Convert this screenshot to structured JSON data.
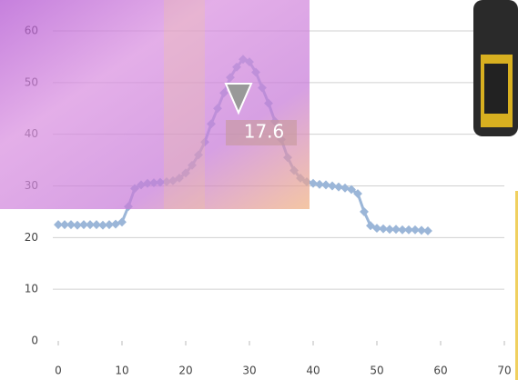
{
  "chart_data": {
    "type": "line",
    "annotation": "17.6",
    "xlim": [
      0,
      70
    ],
    "xticks": [
      0,
      10,
      20,
      30,
      40,
      50,
      60,
      70
    ],
    "ylim": [
      0,
      60
    ],
    "yticks": [
      0,
      10,
      20,
      30,
      40,
      50,
      60
    ],
    "grid": true,
    "series": [
      {
        "color": "#9bb6d8",
        "x": [
          0,
          1,
          2,
          3,
          4,
          5,
          6,
          7,
          8,
          9,
          10,
          11,
          12,
          13,
          14,
          15,
          16,
          17,
          18,
          19,
          20,
          21,
          22,
          23,
          24,
          25,
          26,
          27,
          28,
          29,
          30,
          31,
          32,
          33,
          34,
          35,
          36,
          37,
          38,
          39,
          40,
          41,
          42,
          43,
          44,
          45,
          46,
          47,
          48,
          49,
          50,
          51,
          52,
          53,
          54,
          55,
          56,
          57,
          58
        ],
        "values": [
          22.5,
          22.5,
          22.5,
          22.4,
          22.5,
          22.5,
          22.5,
          22.4,
          22.5,
          22.6,
          23,
          26,
          29.5,
          30.2,
          30.5,
          30.6,
          30.7,
          30.8,
          31,
          31.5,
          32.5,
          34,
          36,
          38.5,
          42,
          45,
          48,
          51,
          53,
          54.5,
          54,
          52,
          49,
          46,
          42.5,
          39,
          35.5,
          33,
          31.5,
          30.8,
          30.5,
          30.3,
          30.2,
          30,
          29.8,
          29.6,
          29.3,
          28.5,
          25,
          22.3,
          21.8,
          21.7,
          21.6,
          21.6,
          21.5,
          21.5,
          21.5,
          21.4,
          21.3
        ]
      }
    ]
  }
}
